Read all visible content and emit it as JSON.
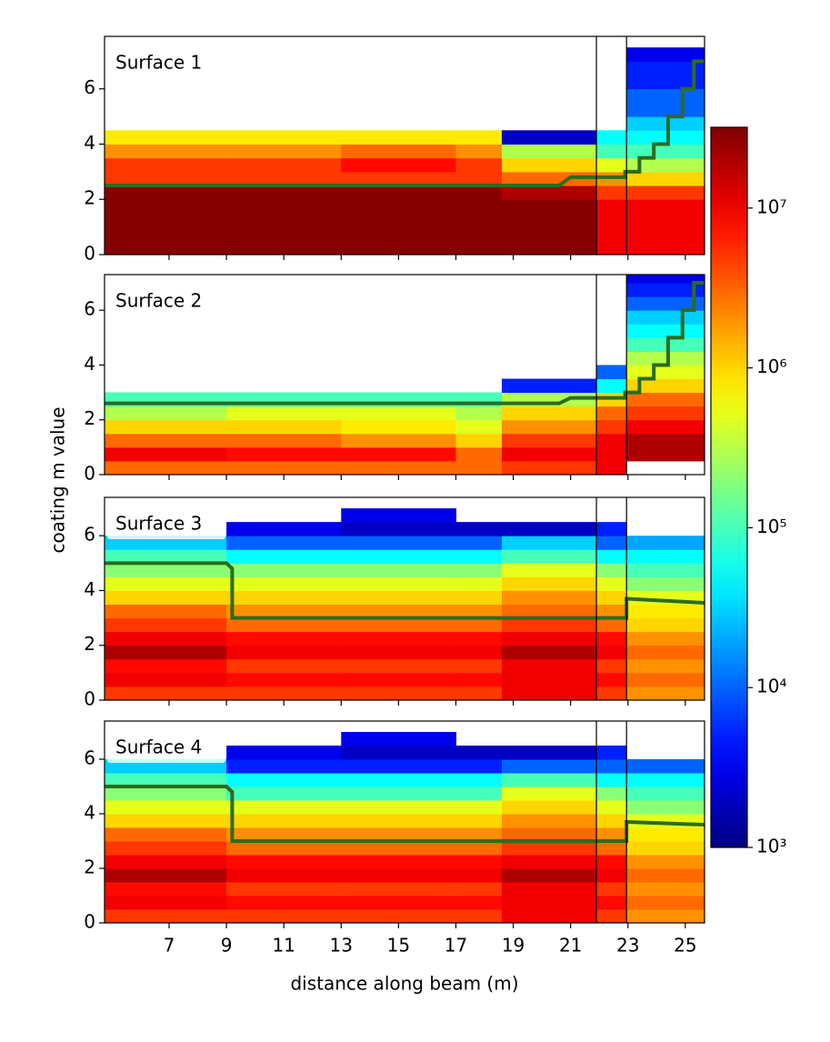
{
  "chart_data": {
    "type": "heatmap",
    "xlabel": "distance along beam (m)",
    "ylabel": "coating m value",
    "xlim": [
      4.75,
      25.67
    ],
    "xticks": [
      7,
      9,
      11,
      13,
      15,
      17,
      19,
      21,
      23,
      25
    ],
    "xedges": [
      4.75,
      9,
      13,
      17,
      18.6,
      21.9,
      22.95,
      25.67
    ],
    "yedges": [
      0,
      0.5,
      1,
      1.5,
      2,
      2.5,
      3,
      3.5,
      4,
      4.5,
      5,
      5.5,
      6,
      6.5,
      7,
      7.5
    ],
    "yticks": [
      0,
      2,
      4,
      6
    ],
    "vlines": [
      21.9,
      22.95
    ],
    "line_color": "#2e6b1f",
    "colormap": "jet",
    "log_color": true,
    "clim": [
      1000,
      32000000
    ],
    "cticks": [
      {
        "value": 1000,
        "label": "10³"
      },
      {
        "value": 10000,
        "label": "10⁴"
      },
      {
        "value": 100000,
        "label": "10⁵"
      },
      {
        "value": 1000000,
        "label": "10⁶"
      },
      {
        "value": 10000000,
        "label": "10⁷"
      }
    ],
    "panels": [
      {
        "title": "Surface 1",
        "ylim": [
          0,
          7.9
        ],
        "values": [
          [
            30000000.0,
            30000000.0,
            30000000.0,
            30000000.0,
            30000000.0,
            10000000.0,
            10000000.0
          ],
          [
            30000000.0,
            30000000.0,
            30000000.0,
            30000000.0,
            30000000.0,
            10000000.0,
            10000000.0
          ],
          [
            30000000.0,
            30000000.0,
            30000000.0,
            30000000.0,
            30000000.0,
            10000000.0,
            10000000.0
          ],
          [
            30000000.0,
            30000000.0,
            30000000.0,
            30000000.0,
            30000000.0,
            10000000.0,
            10000000.0
          ],
          [
            30000000.0,
            30000000.0,
            30000000.0,
            30000000.0,
            20000000.0,
            5000000.0,
            5000000.0
          ],
          [
            5000000.0,
            5000000.0,
            5000000.0,
            5000000.0,
            3000000.0,
            2000000.0,
            1000000.0
          ],
          [
            5000000.0,
            5000000.0,
            8000000.0,
            5000000.0,
            1000000.0,
            500000.0,
            300000.0
          ],
          [
            2000000.0,
            2000000.0,
            3000000.0,
            2000000.0,
            300000.0,
            100000.0,
            100000.0
          ],
          [
            800000.0,
            800000.0,
            800000.0,
            800000.0,
            2000.0,
            50000.0,
            50000.0
          ],
          [
            null,
            null,
            null,
            null,
            null,
            null,
            30000.0
          ],
          [
            null,
            null,
            null,
            null,
            null,
            null,
            10000.0
          ],
          [
            null,
            null,
            null,
            null,
            null,
            null,
            10000.0
          ],
          [
            null,
            null,
            null,
            null,
            null,
            null,
            5000.0
          ],
          [
            null,
            null,
            null,
            null,
            null,
            null,
            5000.0
          ],
          [
            null,
            null,
            null,
            null,
            null,
            null,
            3000.0
          ]
        ],
        "line": {
          "x": [
            4.75,
            20.6,
            21.0,
            22.9,
            22.9,
            23.4,
            23.4,
            23.9,
            23.9,
            24.4,
            24.4,
            24.9,
            24.9,
            25.3,
            25.3,
            25.67
          ],
          "y": [
            2.5,
            2.5,
            2.8,
            2.8,
            3.0,
            3.0,
            3.5,
            3.5,
            4.0,
            4.0,
            5.0,
            5.0,
            6.0,
            6.0,
            7.0,
            7.0
          ]
        }
      },
      {
        "title": "Surface 2",
        "ylim": [
          0,
          7.3
        ],
        "values": [
          [
            3000000.0,
            3000000.0,
            3000000.0,
            3000000.0,
            5000000.0,
            10000000.0,
            null
          ],
          [
            10000000.0,
            8000000.0,
            8000000.0,
            3000000.0,
            10000000.0,
            10000000.0,
            20000000.0
          ],
          [
            3000000.0,
            3000000.0,
            2000000.0,
            1000000.0,
            5000000.0,
            10000000.0,
            20000000.0
          ],
          [
            1000000.0,
            1000000.0,
            800000.0,
            500000.0,
            2000000.0,
            5000000.0,
            10000000.0
          ],
          [
            300000.0,
            500000.0,
            500000.0,
            300000.0,
            1000000.0,
            3000000.0,
            5000000.0
          ],
          [
            100000.0,
            100000.0,
            100000.0,
            100000.0,
            300000.0,
            1000000.0,
            3000000.0
          ],
          [
            null,
            null,
            null,
            null,
            5000.0,
            50000.0,
            1000000.0
          ],
          [
            null,
            null,
            null,
            null,
            null,
            10000.0,
            500000.0
          ],
          [
            null,
            null,
            null,
            null,
            null,
            null,
            300000.0
          ],
          [
            null,
            null,
            null,
            null,
            null,
            null,
            100000.0
          ],
          [
            null,
            null,
            null,
            null,
            null,
            null,
            50000.0
          ],
          [
            null,
            null,
            null,
            null,
            null,
            null,
            30000.0
          ],
          [
            null,
            null,
            null,
            null,
            null,
            null,
            10000.0
          ],
          [
            null,
            null,
            null,
            null,
            null,
            null,
            5000.0
          ],
          [
            null,
            null,
            null,
            null,
            null,
            null,
            3000.0
          ]
        ],
        "line": {
          "x": [
            4.75,
            20.6,
            21.0,
            22.9,
            22.9,
            23.4,
            23.4,
            23.9,
            23.9,
            24.4,
            24.4,
            24.9,
            24.9,
            25.3,
            25.3,
            25.67
          ],
          "y": [
            2.6,
            2.6,
            2.8,
            2.8,
            3.0,
            3.0,
            3.5,
            3.5,
            4.0,
            4.0,
            5.0,
            5.0,
            6.0,
            6.0,
            7.0,
            7.0
          ]
        }
      },
      {
        "title": "Surface 3",
        "ylim": [
          0,
          7.4
        ],
        "values": [
          [
            5000000.0,
            5000000.0,
            5000000.0,
            5000000.0,
            10000000.0,
            5000000.0,
            2000000.0
          ],
          [
            10000000.0,
            8000000.0,
            8000000.0,
            8000000.0,
            10000000.0,
            8000000.0,
            3000000.0
          ],
          [
            8000000.0,
            5000000.0,
            5000000.0,
            5000000.0,
            10000000.0,
            5000000.0,
            2000000.0
          ],
          [
            20000000.0,
            10000000.0,
            10000000.0,
            10000000.0,
            20000000.0,
            10000000.0,
            3000000.0
          ],
          [
            10000000.0,
            8000000.0,
            8000000.0,
            8000000.0,
            10000000.0,
            8000000.0,
            2000000.0
          ],
          [
            5000000.0,
            3000000.0,
            3000000.0,
            3000000.0,
            5000000.0,
            3000000.0,
            1000000.0
          ],
          [
            3000000.0,
            2000000.0,
            2000000.0,
            2000000.0,
            3000000.0,
            2000000.0,
            800000.0
          ],
          [
            1000000.0,
            1000000.0,
            1000000.0,
            1000000.0,
            2000000.0,
            1000000.0,
            500000.0
          ],
          [
            500000.0,
            500000.0,
            500000.0,
            500000.0,
            1000000.0,
            500000.0,
            200000.0
          ],
          [
            200000.0,
            200000.0,
            200000.0,
            200000.0,
            500000.0,
            200000.0,
            100000.0
          ],
          [
            100000.0,
            50000.0,
            50000.0,
            50000.0,
            100000.0,
            50000.0,
            50000.0
          ],
          [
            30000.0,
            10000.0,
            10000.0,
            10000.0,
            30000.0,
            10000.0,
            20000.0
          ],
          [
            null,
            3000.0,
            2000.0,
            2000.0,
            2000.0,
            5000.0,
            null
          ],
          [
            null,
            null,
            3000.0,
            null,
            null,
            null,
            null
          ],
          [
            null,
            null,
            null,
            null,
            null,
            null,
            null
          ]
        ],
        "line": {
          "x": [
            4.75,
            9.0,
            9.2,
            9.2,
            22.95,
            22.95,
            25.67
          ],
          "y": [
            5.0,
            5.0,
            4.8,
            3.0,
            3.0,
            3.7,
            3.55
          ]
        }
      },
      {
        "title": "Surface 4",
        "ylim": [
          0,
          7.4
        ],
        "values": [
          [
            5000000.0,
            5000000.0,
            5000000.0,
            5000000.0,
            10000000.0,
            5000000.0,
            2000000.0
          ],
          [
            10000000.0,
            8000000.0,
            8000000.0,
            8000000.0,
            10000000.0,
            8000000.0,
            3000000.0
          ],
          [
            8000000.0,
            5000000.0,
            5000000.0,
            5000000.0,
            10000000.0,
            5000000.0,
            2000000.0
          ],
          [
            20000000.0,
            10000000.0,
            10000000.0,
            10000000.0,
            20000000.0,
            10000000.0,
            3000000.0
          ],
          [
            10000000.0,
            8000000.0,
            8000000.0,
            8000000.0,
            10000000.0,
            8000000.0,
            2000000.0
          ],
          [
            5000000.0,
            3000000.0,
            3000000.0,
            3000000.0,
            5000000.0,
            3000000.0,
            1000000.0
          ],
          [
            3000000.0,
            2000000.0,
            2000000.0,
            2000000.0,
            3000000.0,
            2000000.0,
            800000.0
          ],
          [
            1000000.0,
            1000000.0,
            1000000.0,
            1000000.0,
            2000000.0,
            1000000.0,
            500000.0
          ],
          [
            500000.0,
            500000.0,
            500000.0,
            500000.0,
            1000000.0,
            500000.0,
            200000.0
          ],
          [
            200000.0,
            100000.0,
            100000.0,
            100000.0,
            500000.0,
            200000.0,
            100000.0
          ],
          [
            100000.0,
            50000.0,
            50000.0,
            50000.0,
            100000.0,
            50000.0,
            50000.0
          ],
          [
            30000.0,
            5000.0,
            5000.0,
            5000.0,
            10000.0,
            10000.0,
            10000.0
          ],
          [
            null,
            3000.0,
            2000.0,
            2000.0,
            2000.0,
            5000.0,
            null
          ],
          [
            null,
            null,
            3000.0,
            null,
            null,
            null,
            null
          ],
          [
            null,
            null,
            null,
            null,
            null,
            null,
            null
          ]
        ],
        "line": {
          "x": [
            4.75,
            9.0,
            9.2,
            9.2,
            22.95,
            22.95,
            25.67
          ],
          "y": [
            5.0,
            5.0,
            4.8,
            3.0,
            3.0,
            3.7,
            3.6
          ]
        }
      }
    ]
  }
}
